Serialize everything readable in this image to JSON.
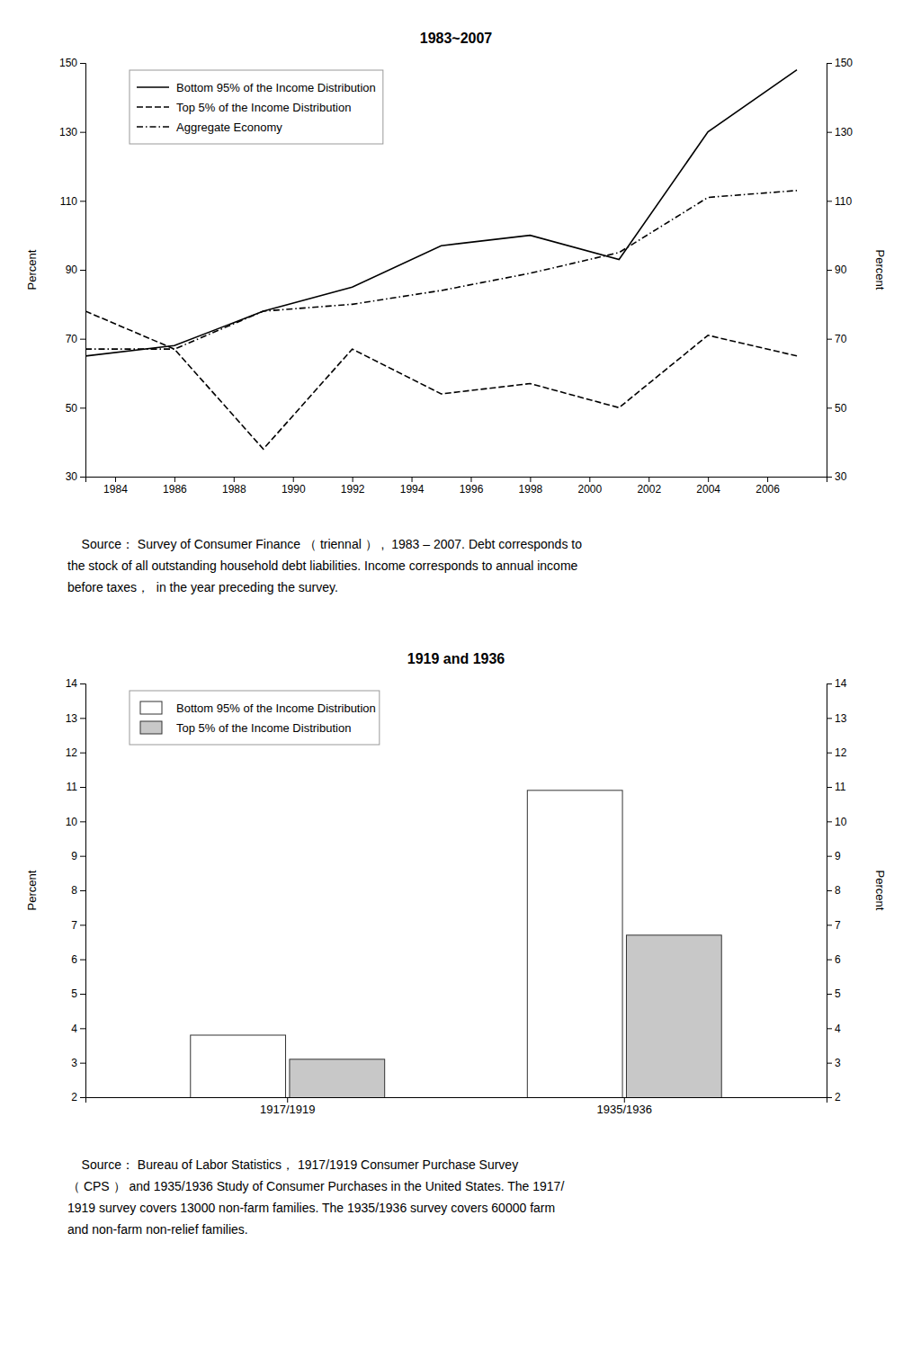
{
  "chart_data": [
    {
      "type": "line",
      "title": "1983~2007",
      "x": [
        1983,
        1986,
        1989,
        1992,
        1995,
        1998,
        2001,
        2004,
        2007
      ],
      "xlim": [
        1983,
        2008
      ],
      "xticks": [
        1984,
        1986,
        1988,
        1990,
        1992,
        1994,
        1996,
        1998,
        2000,
        2002,
        2004,
        2006
      ],
      "ylim": [
        30,
        150
      ],
      "yticks": [
        30,
        50,
        70,
        90,
        110,
        130,
        150
      ],
      "y2lim": [
        30,
        150
      ],
      "y2ticks": [
        30,
        50,
        70,
        90,
        110,
        130,
        150
      ],
      "ylabel": "Percent",
      "y2label": "Percent",
      "series": [
        {
          "name": "Bottom 95% of the Income Distribution",
          "color": "#000000",
          "line_style": "solid",
          "values": [
            65,
            68,
            78,
            85,
            97,
            100,
            93,
            130,
            148
          ]
        },
        {
          "name": "Top 5% of the Income Distribution",
          "color": "#000000",
          "line_style": "dashed",
          "values": [
            78,
            67,
            38,
            67,
            54,
            57,
            50,
            71,
            65
          ]
        },
        {
          "name": "Aggregate Economy",
          "color": "#000000",
          "line_style": "dashdot",
          "values": [
            67,
            67,
            78,
            80,
            84,
            89,
            95,
            111,
            113
          ]
        }
      ],
      "legend": "upper left",
      "grid": false,
      "annotations": [
        "    Source： Survey of Consumer Finance （ triennal ） ,  1983 – 2007. Debt corresponds to",
        "the stock of all outstanding household debt liabilities. Income corresponds to annual income",
        "before taxes，  in the year preceding the survey."
      ]
    },
    {
      "type": "bar",
      "title": "1919 and 1936",
      "categories": [
        "1917/1919",
        "1935/1936"
      ],
      "ylim": [
        2,
        14
      ],
      "yticks": [
        2,
        3,
        4,
        5,
        6,
        7,
        8,
        9,
        10,
        11,
        12,
        13,
        14
      ],
      "y2lim": [
        2,
        14
      ],
      "y2ticks": [
        2,
        3,
        4,
        5,
        6,
        7,
        8,
        9,
        10,
        11,
        12,
        13,
        14
      ],
      "ylabel": "Percent",
      "y2label": "Percent",
      "series": [
        {
          "name": "Bottom 95% of the Income Distribution",
          "color": "#ffffff",
          "values": [
            3.8,
            10.9
          ]
        },
        {
          "name": "Top 5% of the Income Distribution",
          "color": "#c8c8c8",
          "values": [
            3.1,
            6.7
          ]
        }
      ],
      "legend": "upper left",
      "grid": false,
      "annotations": [
        "    Source： Bureau of Labor Statistics， 1917/1919 Consumer Purchase Survey",
        "（ CPS ） and 1935/1936 Study of Consumer Purchases in the United States. The 1917/",
        "1919 survey covers 13000 non-farm families. The 1935/1936 survey covers 60000 farm",
        "and non-farm non-relief families."
      ]
    }
  ]
}
